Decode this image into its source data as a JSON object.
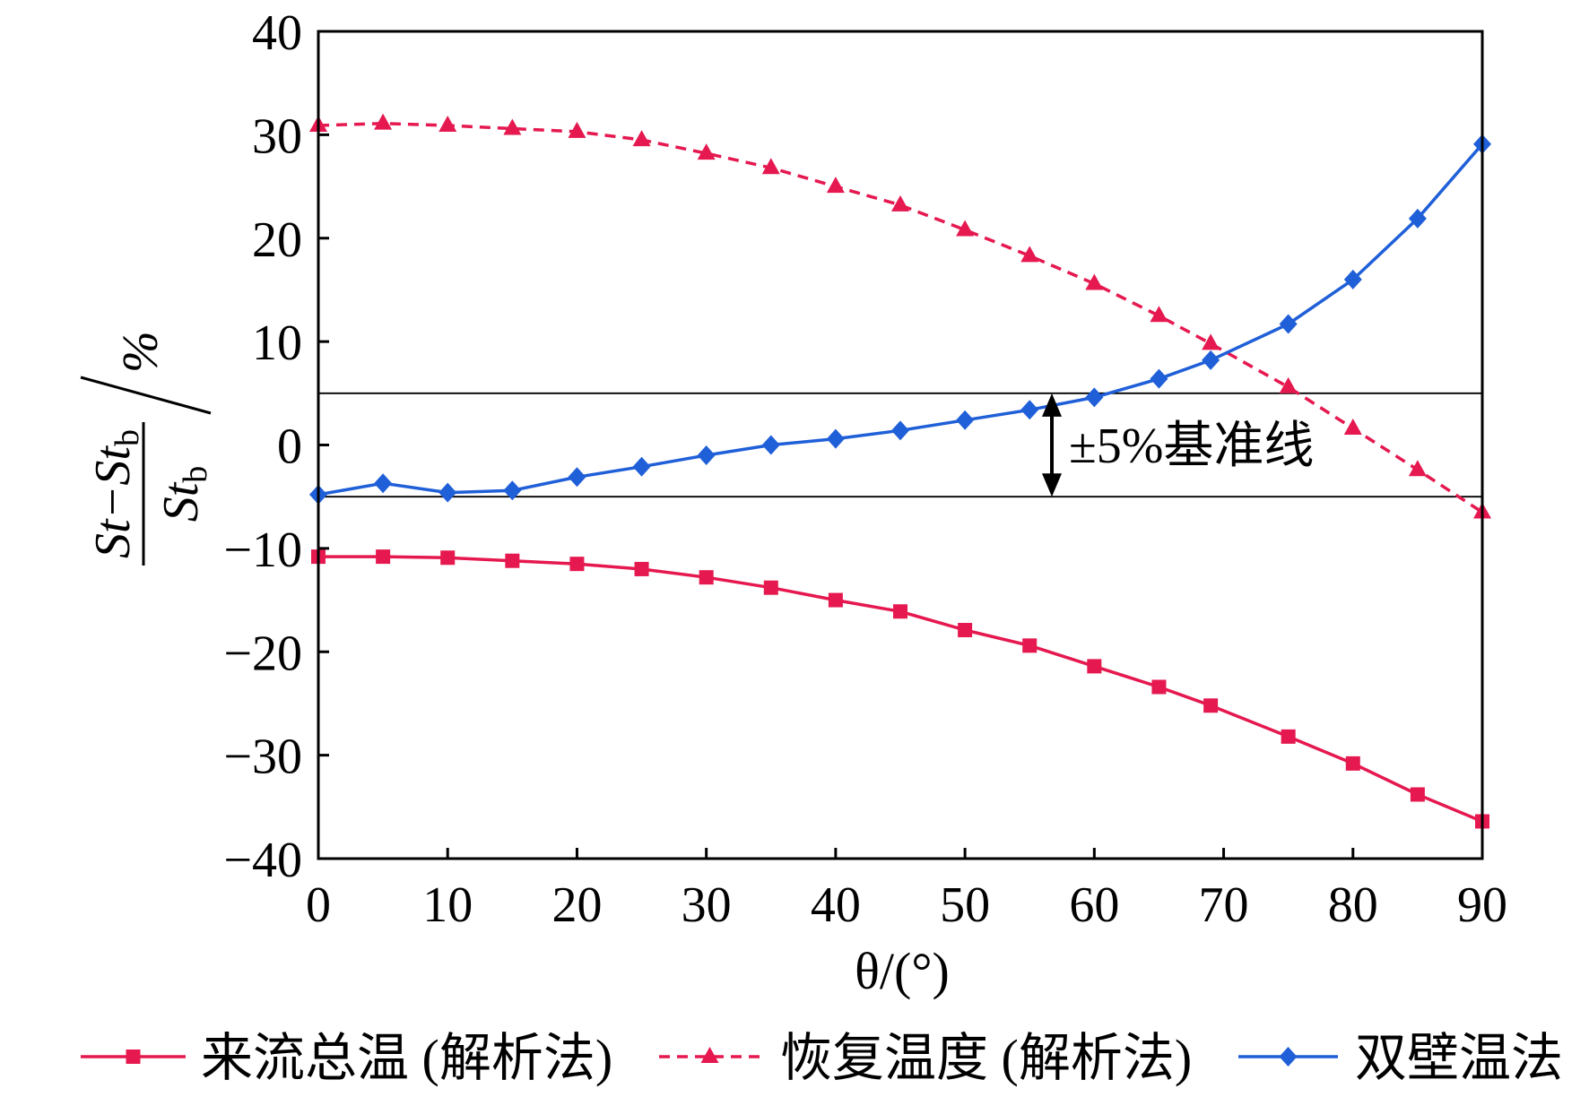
{
  "chart_data": {
    "type": "line",
    "xlabel": "θ/(°)",
    "ylabel": {
      "numerator": "St−St",
      "numerator_sub": "b",
      "denominator": "St",
      "denominator_sub": "b",
      "unit": "%"
    },
    "xlim": [
      0,
      90
    ],
    "ylim": [
      -40,
      40
    ],
    "xticks": [
      0,
      10,
      20,
      30,
      40,
      50,
      60,
      70,
      80,
      90
    ],
    "xtick_labels": [
      "0",
      "10",
      "20",
      "30",
      "40",
      "50",
      "60",
      "70",
      "80",
      "90"
    ],
    "yticks": [
      40,
      30,
      20,
      10,
      0,
      -10,
      -20,
      -30,
      -40
    ],
    "ytick_labels": [
      "40",
      "30",
      "20",
      "10",
      "0",
      "−10",
      "−20",
      "−30",
      "−40"
    ],
    "x": [
      0,
      5,
      10,
      15,
      20,
      25,
      30,
      35,
      40,
      45,
      50,
      55,
      60,
      65,
      69,
      75,
      80,
      85,
      90
    ],
    "series": [
      {
        "name": "来流总温 (解析法)",
        "marker": "square",
        "line_style": "solid",
        "color": "#e5184f",
        "values": [
          -10.8,
          -10.8,
          -10.9,
          -11.2,
          -11.5,
          -12.0,
          -12.8,
          -13.8,
          -15.0,
          -16.1,
          -17.9,
          -19.4,
          -21.4,
          -23.4,
          -25.2,
          -28.2,
          -30.8,
          -33.8,
          -36.4
        ]
      },
      {
        "name": "恢复温度 (解析法)",
        "marker": "triangle",
        "line_style": "dashed",
        "color": "#e5184f",
        "values": [
          30.9,
          31.1,
          30.9,
          30.6,
          30.3,
          29.5,
          28.2,
          26.8,
          25.0,
          23.2,
          20.8,
          18.3,
          15.6,
          12.5,
          9.8,
          5.6,
          1.6,
          -2.4,
          -6.5
        ]
      },
      {
        "name": "双壁温法",
        "marker": "diamond",
        "line_style": "solid",
        "color": "#1f5fd8",
        "values": [
          -4.8,
          -3.7,
          -4.6,
          -4.4,
          -3.1,
          -2.1,
          -1.0,
          0.0,
          0.6,
          1.4,
          2.4,
          3.4,
          4.6,
          6.4,
          8.2,
          11.7,
          16.0,
          21.9,
          29.1
        ]
      }
    ],
    "reference_lines": [
      5,
      -5
    ],
    "annotation": "±5%基准线",
    "legend": "bottom",
    "grid": false
  }
}
